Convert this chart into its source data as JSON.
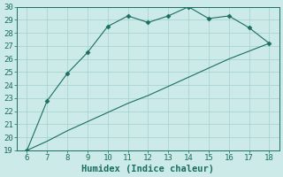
{
  "top_line_x": [
    6,
    7,
    8,
    9,
    10,
    11,
    12,
    13,
    14,
    15,
    16,
    17,
    18
  ],
  "top_line_y": [
    19.0,
    22.8,
    24.9,
    26.5,
    28.5,
    29.3,
    28.8,
    29.3,
    30.0,
    29.1,
    29.3,
    28.4,
    27.2
  ],
  "bottom_line_x": [
    6,
    7,
    8,
    9,
    10,
    11,
    12,
    13,
    14,
    15,
    16,
    17,
    18
  ],
  "bottom_line_y": [
    19.0,
    19.7,
    20.5,
    21.2,
    21.9,
    22.6,
    23.2,
    23.9,
    24.6,
    25.3,
    26.0,
    26.6,
    27.2
  ],
  "line_color": "#1a6e62",
  "bg_color": "#cceae7",
  "grid_color": "#aad4d0",
  "xlabel": "Humidex (Indice chaleur)",
  "xlim": [
    5.5,
    18.5
  ],
  "ylim": [
    19,
    30
  ],
  "xticks": [
    6,
    7,
    8,
    9,
    10,
    11,
    12,
    13,
    14,
    15,
    16,
    17,
    18
  ],
  "yticks": [
    19,
    20,
    21,
    22,
    23,
    24,
    25,
    26,
    27,
    28,
    29,
    30
  ],
  "label_fontsize": 7.5,
  "tick_fontsize": 6.5,
  "marker": "D",
  "markersize": 2.5
}
